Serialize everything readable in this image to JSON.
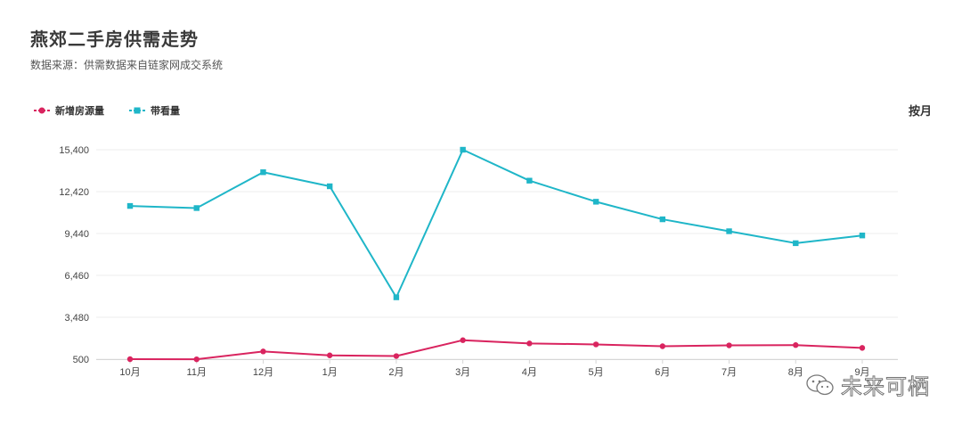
{
  "header": {
    "title": "燕郊二手房供需走势",
    "subtitle": "数据来源：供需数据来自链家网成交系统",
    "period_label": "按月"
  },
  "watermark": {
    "text": "未来可栖",
    "icon": "wechat-icon"
  },
  "colors": {
    "new_listings": "#d9245f",
    "viewings": "#1fb6c8",
    "grid": "#eeeeee",
    "axis_text": "#444444"
  },
  "chart_data": {
    "type": "line",
    "categories": [
      "10月",
      "11月",
      "12月",
      "1月",
      "2月",
      "3月",
      "4月",
      "5月",
      "6月",
      "7月",
      "8月",
      "9月"
    ],
    "yticks": [
      500,
      3480,
      6460,
      9440,
      12420,
      15400
    ],
    "ytick_labels": [
      "500",
      "3,480",
      "6,460",
      "9,440",
      "12,420",
      "15,400"
    ],
    "ylim": [
      500,
      15400
    ],
    "legend_position": "top-left",
    "grid": true,
    "series": [
      {
        "name": "新增房源量",
        "marker": "circle",
        "values": [
          500,
          490,
          1050,
          770,
          720,
          1850,
          1620,
          1550,
          1420,
          1480,
          1500,
          1300
        ]
      },
      {
        "name": "带看量",
        "marker": "square",
        "values": [
          11400,
          11250,
          13800,
          12800,
          4900,
          15400,
          13200,
          11700,
          10450,
          9600,
          8750,
          9300
        ]
      }
    ]
  }
}
